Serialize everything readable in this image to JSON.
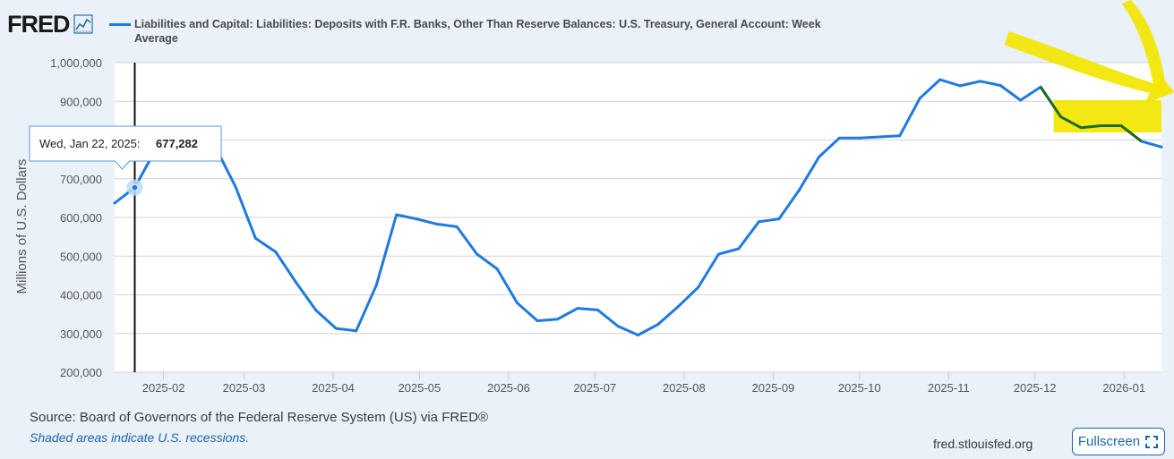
{
  "header": {
    "logo_text": "FRED",
    "logo_icon": "line-chart-icon",
    "series_title": "Liabilities and Capital: Liabilities: Deposits with F.R. Banks, Other Than Reserve Balances: U.S. Treasury, General Account: Week Average"
  },
  "colors": {
    "series": "#1f7ae0",
    "highlight_annotation": "#f2e600",
    "highlight_segment": "#1d6b1d",
    "grid": "#d4d4d4",
    "axis_text": "#555555"
  },
  "tooltip": {
    "date_label": "Wed, Jan 22, 2025:",
    "value_label": "677,282"
  },
  "footer": {
    "source": "Source: Board of Governors of the Federal Reserve System (US) via FRED®",
    "recessions_note": "Shaded areas indicate U.S. recessions.",
    "site": "fred.stlouisfed.org",
    "fullscreen_label": "Fullscreen",
    "fullscreen_icon": "expand-icon"
  },
  "chart_data": {
    "type": "line",
    "ylabel": "Millions of U.S. Dollars",
    "ylim": [
      200000,
      1000000
    ],
    "yticks": [
      200000,
      300000,
      400000,
      500000,
      600000,
      700000,
      800000,
      900000,
      1000000
    ],
    "ytick_labels": [
      "200,000",
      "300,000",
      "400,000",
      "500,000",
      "600,000",
      "700,000",
      "800,000",
      "900,000",
      "1,000,000"
    ],
    "xlim": [
      "2025-01-15",
      "2026-01-14"
    ],
    "xticks": [
      "2025-02-01",
      "2025-03-01",
      "2025-04-01",
      "2025-05-01",
      "2025-06-01",
      "2025-07-01",
      "2025-08-01",
      "2025-09-01",
      "2025-10-01",
      "2025-11-01",
      "2025-12-01",
      "2026-01-01"
    ],
    "xtick_labels": [
      "2025-02",
      "2025-03",
      "2025-04",
      "2025-05",
      "2025-06",
      "2025-07",
      "2025-08",
      "2025-09",
      "2025-10",
      "2025-11",
      "2025-12",
      "2026-01"
    ],
    "grid": true,
    "legend": "top-left",
    "series": [
      {
        "name": "Liabilities and Capital: Liabilities: Deposits with F.R. Banks, Other Than Reserve Balances: U.S. Treasury, General Account: Week Average",
        "x": [
          "2025-01-15",
          "2025-01-22",
          "2025-01-29",
          "2025-02-05",
          "2025-02-12",
          "2025-02-19",
          "2025-02-26",
          "2025-03-05",
          "2025-03-12",
          "2025-03-19",
          "2025-03-26",
          "2025-04-02",
          "2025-04-09",
          "2025-04-16",
          "2025-04-23",
          "2025-04-30",
          "2025-05-07",
          "2025-05-14",
          "2025-05-21",
          "2025-05-28",
          "2025-06-04",
          "2025-06-11",
          "2025-06-18",
          "2025-06-25",
          "2025-07-02",
          "2025-07-09",
          "2025-07-16",
          "2025-07-23",
          "2025-07-30",
          "2025-08-06",
          "2025-08-13",
          "2025-08-20",
          "2025-08-27",
          "2025-09-03",
          "2025-09-10",
          "2025-09-17",
          "2025-09-24",
          "2025-10-01",
          "2025-10-08",
          "2025-10-15",
          "2025-10-22",
          "2025-10-29",
          "2025-11-05",
          "2025-11-12",
          "2025-11-19",
          "2025-11-26",
          "2025-12-03",
          "2025-12-10",
          "2025-12-17",
          "2025-12-24",
          "2025-12-31",
          "2026-01-07",
          "2026-01-14"
        ],
        "values": [
          637000,
          677282,
          772000,
          796000,
          833000,
          783000,
          680000,
          546000,
          511000,
          433000,
          360000,
          313000,
          307000,
          425000,
          607000,
          596000,
          583000,
          576000,
          505000,
          467000,
          379000,
          333000,
          337000,
          365000,
          361000,
          319000,
          296000,
          324000,
          370000,
          420000,
          505000,
          519000,
          589000,
          596000,
          670000,
          757000,
          805000,
          805000,
          808000,
          811000,
          908000,
          956000,
          940000,
          952000,
          941000,
          903000,
          937000,
          860000,
          832000,
          837000,
          837000,
          797000,
          782000
        ]
      }
    ],
    "highlighted_range": [
      "2025-12-10",
      "2026-01-07"
    ],
    "marker": {
      "x": "2025-01-22",
      "y": 677282
    }
  }
}
